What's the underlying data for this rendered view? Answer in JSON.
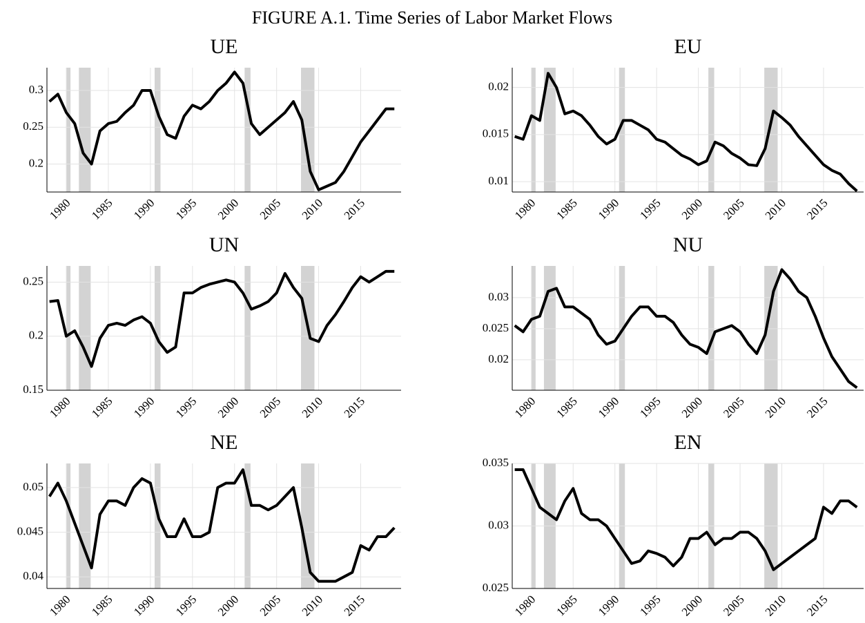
{
  "title": "FIGURE A.1. Time Series of Labor Market Flows",
  "chart_data": [
    {
      "type": "line",
      "title": "UE",
      "x": [
        1978,
        1979,
        1980,
        1981,
        1982,
        1983,
        1984,
        1985,
        1986,
        1987,
        1988,
        1989,
        1990,
        1991,
        1992,
        1993,
        1994,
        1995,
        1996,
        1997,
        1998,
        1999,
        2000,
        2001,
        2002,
        2003,
        2004,
        2005,
        2006,
        2007,
        2008,
        2009,
        2010,
        2011,
        2012,
        2013,
        2014,
        2015,
        2016,
        2017,
        2018,
        2019
      ],
      "values": [
        0.285,
        0.295,
        0.27,
        0.255,
        0.215,
        0.2,
        0.245,
        0.255,
        0.258,
        0.27,
        0.28,
        0.3,
        0.3,
        0.265,
        0.24,
        0.235,
        0.265,
        0.28,
        0.275,
        0.285,
        0.3,
        0.31,
        0.325,
        0.31,
        0.255,
        0.24,
        0.25,
        0.26,
        0.27,
        0.285,
        0.26,
        0.19,
        0.165,
        0.17,
        0.175,
        0.19,
        0.21,
        0.23,
        0.245,
        0.26,
        0.275,
        0.275
      ],
      "color": "#000000",
      "xlim": [
        1977.7,
        2019.8
      ],
      "ylim": [
        0.162,
        0.331
      ],
      "xticks": [
        1980,
        1985,
        1990,
        1995,
        2000,
        2005,
        2010,
        2015
      ],
      "yticks": [
        0.2,
        0.25,
        0.3
      ],
      "grid": true,
      "recessions": [
        [
          1980.0,
          1980.5
        ],
        [
          1981.5,
          1982.9
        ],
        [
          1990.5,
          1991.2
        ],
        [
          2001.2,
          2001.9
        ],
        [
          2007.9,
          2009.5
        ]
      ],
      "recession_color": "#d3d3d3"
    },
    {
      "type": "line",
      "title": "EU",
      "x": [
        1978,
        1979,
        1980,
        1981,
        1982,
        1983,
        1984,
        1985,
        1986,
        1987,
        1988,
        1989,
        1990,
        1991,
        1992,
        1993,
        1994,
        1995,
        1996,
        1997,
        1998,
        1999,
        2000,
        2001,
        2002,
        2003,
        2004,
        2005,
        2006,
        2007,
        2008,
        2009,
        2010,
        2011,
        2012,
        2013,
        2014,
        2015,
        2016,
        2017,
        2018,
        2019
      ],
      "values": [
        0.0148,
        0.0145,
        0.017,
        0.0165,
        0.0215,
        0.02,
        0.0172,
        0.0175,
        0.017,
        0.016,
        0.0148,
        0.014,
        0.0145,
        0.0165,
        0.0165,
        0.016,
        0.0155,
        0.0145,
        0.0142,
        0.0135,
        0.0128,
        0.0124,
        0.0118,
        0.0122,
        0.0142,
        0.0138,
        0.013,
        0.0125,
        0.0118,
        0.0117,
        0.0135,
        0.0175,
        0.0168,
        0.016,
        0.0148,
        0.0138,
        0.0128,
        0.0118,
        0.0112,
        0.0108,
        0.0098,
        0.009
      ],
      "color": "#000000",
      "xlim": [
        1977.7,
        2019.8
      ],
      "ylim": [
        0.0089,
        0.0221
      ],
      "xticks": [
        1980,
        1985,
        1990,
        1995,
        2000,
        2005,
        2010,
        2015
      ],
      "yticks": [
        0.01,
        0.015,
        0.02
      ],
      "grid": true,
      "recessions": [
        [
          1980.0,
          1980.5
        ],
        [
          1981.5,
          1982.9
        ],
        [
          1990.5,
          1991.2
        ],
        [
          2001.2,
          2001.9
        ],
        [
          2007.9,
          2009.5
        ]
      ],
      "recession_color": "#d3d3d3"
    },
    {
      "type": "line",
      "title": "UN",
      "x": [
        1978,
        1979,
        1980,
        1981,
        1982,
        1983,
        1984,
        1985,
        1986,
        1987,
        1988,
        1989,
        1990,
        1991,
        1992,
        1993,
        1994,
        1995,
        1996,
        1997,
        1998,
        1999,
        2000,
        2001,
        2002,
        2003,
        2004,
        2005,
        2006,
        2007,
        2008,
        2009,
        2010,
        2011,
        2012,
        2013,
        2014,
        2015,
        2016,
        2017,
        2018,
        2019
      ],
      "values": [
        0.232,
        0.233,
        0.2,
        0.205,
        0.19,
        0.172,
        0.198,
        0.21,
        0.212,
        0.21,
        0.215,
        0.218,
        0.212,
        0.195,
        0.185,
        0.19,
        0.24,
        0.24,
        0.245,
        0.248,
        0.25,
        0.252,
        0.25,
        0.24,
        0.225,
        0.228,
        0.232,
        0.24,
        0.258,
        0.245,
        0.235,
        0.198,
        0.195,
        0.21,
        0.22,
        0.232,
        0.245,
        0.255,
        0.25,
        0.255,
        0.26,
        0.26
      ],
      "color": "#000000",
      "xlim": [
        1977.7,
        2019.8
      ],
      "ylim": [
        0.15,
        0.265
      ],
      "xticks": [
        1980,
        1985,
        1990,
        1995,
        2000,
        2005,
        2010,
        2015
      ],
      "yticks": [
        0.15,
        0.2,
        0.25
      ],
      "grid": true,
      "recessions": [
        [
          1980.0,
          1980.5
        ],
        [
          1981.5,
          1982.9
        ],
        [
          1990.5,
          1991.2
        ],
        [
          2001.2,
          2001.9
        ],
        [
          2007.9,
          2009.5
        ]
      ],
      "recession_color": "#d3d3d3"
    },
    {
      "type": "line",
      "title": "NU",
      "x": [
        1978,
        1979,
        1980,
        1981,
        1982,
        1983,
        1984,
        1985,
        1986,
        1987,
        1988,
        1989,
        1990,
        1991,
        1992,
        1993,
        1994,
        1995,
        1996,
        1997,
        1998,
        1999,
        2000,
        2001,
        2002,
        2003,
        2004,
        2005,
        2006,
        2007,
        2008,
        2009,
        2010,
        2011,
        2012,
        2013,
        2014,
        2015,
        2016,
        2017,
        2018,
        2019
      ],
      "values": [
        0.0255,
        0.0245,
        0.0265,
        0.027,
        0.031,
        0.0315,
        0.0285,
        0.0285,
        0.0275,
        0.0265,
        0.024,
        0.0225,
        0.023,
        0.025,
        0.027,
        0.0285,
        0.0285,
        0.027,
        0.027,
        0.026,
        0.024,
        0.0225,
        0.022,
        0.021,
        0.0245,
        0.025,
        0.0255,
        0.0245,
        0.0225,
        0.021,
        0.024,
        0.031,
        0.0345,
        0.033,
        0.031,
        0.03,
        0.027,
        0.0235,
        0.0205,
        0.0185,
        0.0165,
        0.0155
      ],
      "color": "#000000",
      "xlim": [
        1977.7,
        2019.8
      ],
      "ylim": [
        0.0151,
        0.0351
      ],
      "xticks": [
        1980,
        1985,
        1990,
        1995,
        2000,
        2005,
        2010,
        2015
      ],
      "yticks": [
        0.02,
        0.025,
        0.03
      ],
      "grid": true,
      "recessions": [
        [
          1980.0,
          1980.5
        ],
        [
          1981.5,
          1982.9
        ],
        [
          1990.5,
          1991.2
        ],
        [
          2001.2,
          2001.9
        ],
        [
          2007.9,
          2009.5
        ]
      ],
      "recession_color": "#d3d3d3"
    },
    {
      "type": "line",
      "title": "NE",
      "x": [
        1978,
        1979,
        1980,
        1981,
        1982,
        1983,
        1984,
        1985,
        1986,
        1987,
        1988,
        1989,
        1990,
        1991,
        1992,
        1993,
        1994,
        1995,
        1996,
        1997,
        1998,
        1999,
        2000,
        2001,
        2002,
        2003,
        2004,
        2005,
        2006,
        2007,
        2008,
        2009,
        2010,
        2011,
        2012,
        2013,
        2014,
        2015,
        2016,
        2017,
        2018,
        2019
      ],
      "values": [
        0.049,
        0.0505,
        0.0485,
        0.046,
        0.0435,
        0.041,
        0.047,
        0.0485,
        0.0485,
        0.048,
        0.05,
        0.051,
        0.0505,
        0.0465,
        0.0445,
        0.0445,
        0.0465,
        0.0445,
        0.0445,
        0.045,
        0.05,
        0.0505,
        0.0505,
        0.052,
        0.048,
        0.048,
        0.0475,
        0.048,
        0.049,
        0.05,
        0.0455,
        0.0405,
        0.0395,
        0.0395,
        0.0395,
        0.04,
        0.0405,
        0.0435,
        0.043,
        0.0445,
        0.0445,
        0.0455
      ],
      "color": "#000000",
      "xlim": [
        1977.7,
        2019.8
      ],
      "ylim": [
        0.0387,
        0.0527
      ],
      "xticks": [
        1980,
        1985,
        1990,
        1995,
        2000,
        2005,
        2010,
        2015
      ],
      "yticks": [
        0.04,
        0.045,
        0.05
      ],
      "grid": true,
      "recessions": [
        [
          1980.0,
          1980.5
        ],
        [
          1981.5,
          1982.9
        ],
        [
          1990.5,
          1991.2
        ],
        [
          2001.2,
          2001.9
        ],
        [
          2007.9,
          2009.5
        ]
      ],
      "recession_color": "#d3d3d3"
    },
    {
      "type": "line",
      "title": "EN",
      "x": [
        1978,
        1979,
        1980,
        1981,
        1982,
        1983,
        1984,
        1985,
        1986,
        1987,
        1988,
        1989,
        1990,
        1991,
        1992,
        1993,
        1994,
        1995,
        1996,
        1997,
        1998,
        1999,
        2000,
        2001,
        2002,
        2003,
        2004,
        2005,
        2006,
        2007,
        2008,
        2009,
        2010,
        2011,
        2012,
        2013,
        2014,
        2015,
        2016,
        2017,
        2018,
        2019
      ],
      "values": [
        0.0345,
        0.0345,
        0.033,
        0.0315,
        0.031,
        0.0305,
        0.032,
        0.033,
        0.031,
        0.0305,
        0.0305,
        0.03,
        0.029,
        0.028,
        0.027,
        0.0272,
        0.028,
        0.0278,
        0.0275,
        0.0268,
        0.0275,
        0.029,
        0.029,
        0.0295,
        0.0285,
        0.029,
        0.029,
        0.0295,
        0.0295,
        0.029,
        0.028,
        0.0265,
        0.027,
        0.0275,
        0.028,
        0.0285,
        0.029,
        0.0315,
        0.031,
        0.032,
        0.032,
        0.0315
      ],
      "color": "#000000",
      "xlim": [
        1977.7,
        2019.8
      ],
      "ylim": [
        0.025,
        0.035
      ],
      "xticks": [
        1980,
        1985,
        1990,
        1995,
        2000,
        2005,
        2010,
        2015
      ],
      "yticks": [
        0.025,
        0.03,
        0.035
      ],
      "grid": true,
      "recessions": [
        [
          1980.0,
          1980.5
        ],
        [
          1981.5,
          1982.9
        ],
        [
          1990.5,
          1991.2
        ],
        [
          2001.2,
          2001.9
        ],
        [
          2007.9,
          2009.5
        ]
      ],
      "recession_color": "#d3d3d3"
    }
  ]
}
